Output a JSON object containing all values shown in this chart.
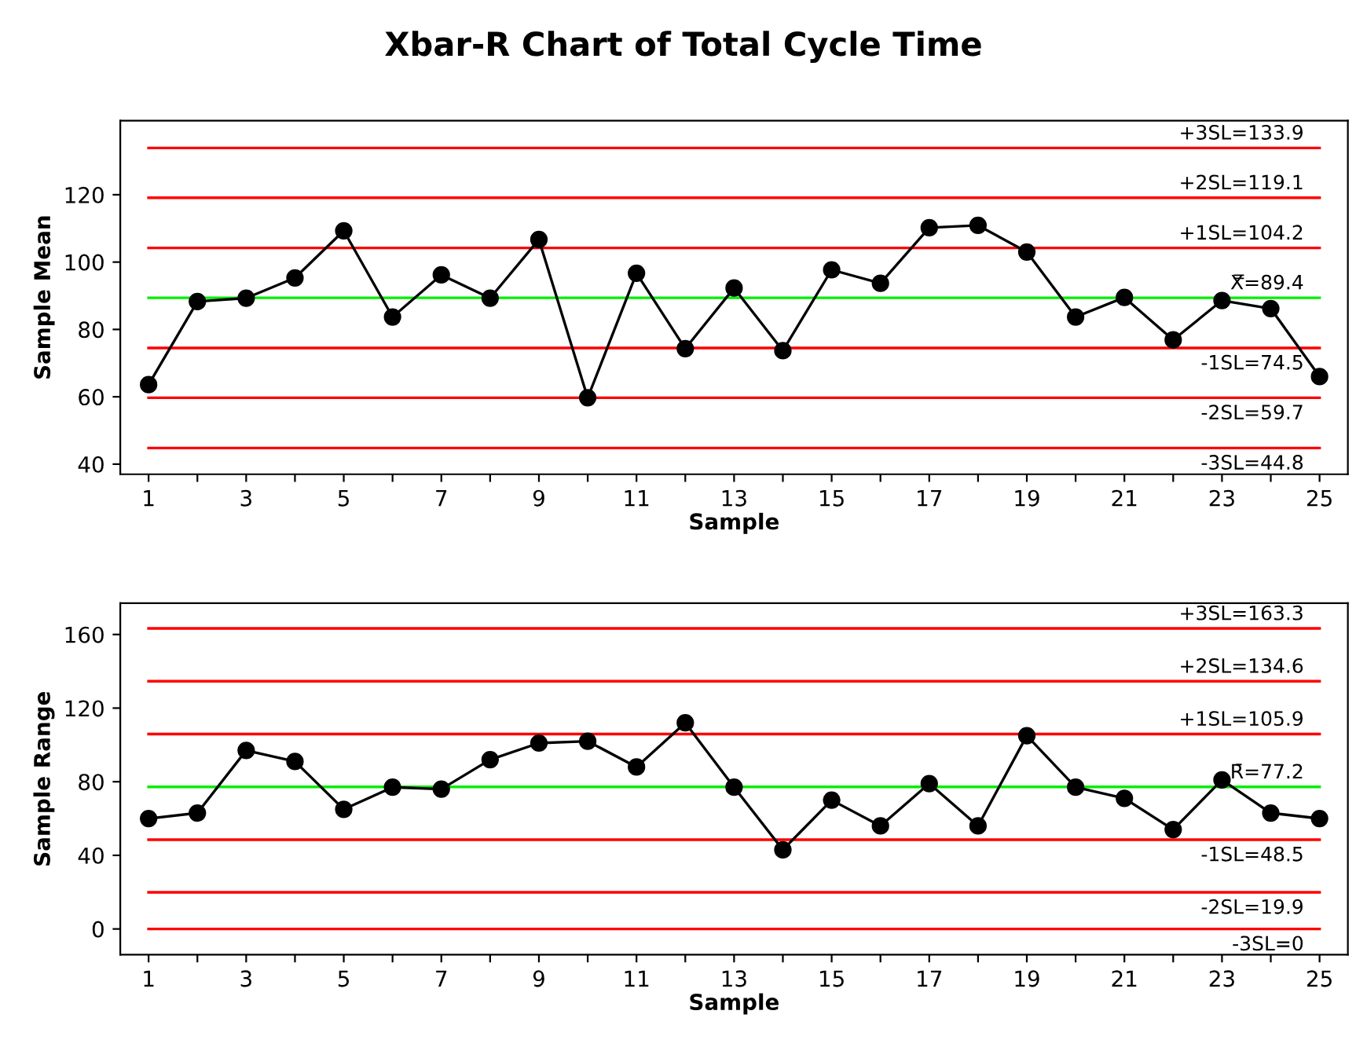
{
  "chart_data": [
    {
      "type": "line",
      "title": "Xbar-R Chart of Total Cycle Time",
      "xlabel": "Sample",
      "ylabel": "Sample Mean",
      "x": [
        1,
        2,
        3,
        4,
        5,
        6,
        7,
        8,
        9,
        10,
        11,
        12,
        13,
        14,
        15,
        16,
        17,
        18,
        19,
        20,
        21,
        22,
        23,
        24,
        25
      ],
      "series": [
        {
          "color": "#000000",
          "values": [
            63.6,
            88.3,
            89.3,
            95.3,
            109.3,
            83.7,
            96.2,
            89.3,
            106.7,
            59.7,
            96.7,
            74.3,
            92.3,
            73.7,
            97.7,
            93.7,
            110.2,
            110.9,
            103,
            83.7,
            89.5,
            76.9,
            88.6,
            86.2,
            66
          ]
        }
      ],
      "marker": "circle",
      "xlim": [
        0.42,
        25.58
      ],
      "ylim": [
        37,
        142
      ],
      "xticks": [
        1,
        {
          "value": 2,
          "label": null
        },
        3,
        {
          "value": 4,
          "label": null
        },
        5,
        {
          "value": 6,
          "label": null
        },
        7,
        {
          "value": 8,
          "label": null
        },
        9,
        {
          "value": 10,
          "label": null
        },
        11,
        {
          "value": 12,
          "label": null
        },
        13,
        {
          "value": 14,
          "label": null
        },
        15,
        {
          "value": 16,
          "label": null
        },
        17,
        {
          "value": 18,
          "label": null
        },
        19,
        {
          "value": 20,
          "label": null
        },
        21,
        {
          "value": 22,
          "label": null
        },
        23,
        {
          "value": 24,
          "label": null
        },
        25
      ],
      "yticks": [
        40,
        60,
        80,
        100,
        120
      ],
      "ref_lines": [
        {
          "axis": "y",
          "value": 133.9,
          "label": "+3SL=133.9",
          "color": "#ff0000"
        },
        {
          "axis": "y",
          "value": 119.1,
          "label": "+2SL=119.1",
          "color": "#ff0000"
        },
        {
          "axis": "y",
          "value": 104.2,
          "label": "+1SL=104.2",
          "color": "#ff0000"
        },
        {
          "axis": "y",
          "value": 89.4,
          "label": "X̿=89.4",
          "color": "#00ee00"
        },
        {
          "axis": "y",
          "value": 74.5,
          "label": "-1SL=74.5",
          "color": "#ff0000"
        },
        {
          "axis": "y",
          "value": 59.7,
          "label": "-2SL=59.7",
          "color": "#ff0000"
        },
        {
          "axis": "y",
          "value": 44.8,
          "label": "-3SL=44.8",
          "color": "#ff0000"
        }
      ]
    },
    {
      "type": "line",
      "xlabel": "Sample",
      "ylabel": "Sample Range",
      "x": [
        1,
        2,
        3,
        4,
        5,
        6,
        7,
        8,
        9,
        10,
        11,
        12,
        13,
        14,
        15,
        16,
        17,
        18,
        19,
        20,
        21,
        22,
        23,
        24,
        25
      ],
      "series": [
        {
          "color": "#000000",
          "values": [
            60,
            63,
            97,
            91,
            65,
            77,
            76,
            92,
            101,
            102,
            88,
            112,
            77,
            43,
            70,
            56,
            79,
            56,
            105,
            77,
            71,
            54,
            81,
            63,
            60
          ]
        }
      ],
      "marker": "circle",
      "xlim": [
        0.42,
        25.58
      ],
      "ylim": [
        -14,
        177
      ],
      "xticks": [
        1,
        {
          "value": 2,
          "label": null
        },
        3,
        {
          "value": 4,
          "label": null
        },
        5,
        {
          "value": 6,
          "label": null
        },
        7,
        {
          "value": 8,
          "label": null
        },
        9,
        {
          "value": 10,
          "label": null
        },
        11,
        {
          "value": 12,
          "label": null
        },
        13,
        {
          "value": 14,
          "label": null
        },
        15,
        {
          "value": 16,
          "label": null
        },
        17,
        {
          "value": 18,
          "label": null
        },
        19,
        {
          "value": 20,
          "label": null
        },
        21,
        {
          "value": 22,
          "label": null
        },
        23,
        {
          "value": 24,
          "label": null
        },
        25
      ],
      "yticks": [
        0,
        40,
        80,
        120,
        160
      ],
      "ref_lines": [
        {
          "axis": "y",
          "value": 163.3,
          "label": "+3SL=163.3",
          "color": "#ff0000"
        },
        {
          "axis": "y",
          "value": 134.6,
          "label": "+2SL=134.6",
          "color": "#ff0000"
        },
        {
          "axis": "y",
          "value": 105.9,
          "label": "+1SL=105.9",
          "color": "#ff0000"
        },
        {
          "axis": "y",
          "value": 77.2,
          "label": "R̄=77.2",
          "color": "#00ee00"
        },
        {
          "axis": "y",
          "value": 48.5,
          "label": "-1SL=48.5",
          "color": "#ff0000"
        },
        {
          "axis": "y",
          "value": 19.9,
          "label": "-2SL=19.9",
          "color": "#ff0000"
        },
        {
          "axis": "y",
          "value": 0,
          "label": "-3SL=0",
          "color": "#ff0000"
        }
      ]
    }
  ]
}
